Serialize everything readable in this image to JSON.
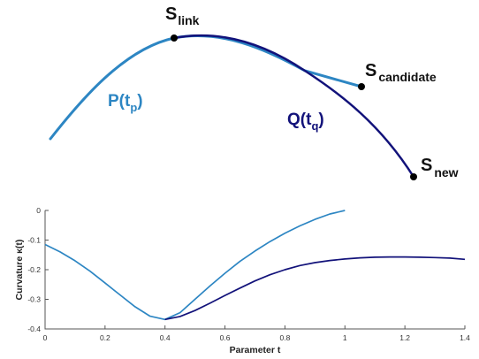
{
  "colors": {
    "p_curve": "#2d86c3",
    "q_curve": "#12127a",
    "axis": "#555555"
  },
  "top_diagram": {
    "points": [
      {
        "key": "link",
        "letter": "S",
        "subscript": "link"
      },
      {
        "key": "candidate",
        "letter": "S",
        "subscript": "candidate"
      },
      {
        "key": "new",
        "letter": "S",
        "subscript": "new"
      }
    ],
    "curve_labels": [
      {
        "key": "p",
        "letter": "P(t",
        "subscript": "p",
        "close": ")"
      },
      {
        "key": "q",
        "letter": "Q(t",
        "subscript": "q",
        "close": ")"
      }
    ]
  },
  "chart_data": {
    "type": "line",
    "xlabel": "Parameter t",
    "ylabel": "Curvature κ(t)",
    "xlim": [
      0,
      1.4
    ],
    "ylim": [
      -0.4,
      0
    ],
    "xticks": [
      0,
      0.2,
      0.4,
      0.6,
      0.8,
      1,
      1.2,
      1.4
    ],
    "xtick_labels": [
      "0",
      "0.2",
      "0.4",
      "0.6",
      "0.8",
      "1",
      "1.2",
      "1.4"
    ],
    "yticks": [
      0,
      -0.1,
      -0.2,
      -0.3,
      -0.4
    ],
    "ytick_labels": [
      "0",
      "-0.1",
      "-0.2",
      "-0.3",
      "-0.4"
    ],
    "grid": false,
    "series": [
      {
        "color": "#2d86c3",
        "x": [
          0,
          0.05,
          0.1,
          0.15,
          0.2,
          0.25,
          0.3,
          0.35,
          0.4,
          0.45,
          0.5,
          0.55,
          0.6,
          0.65,
          0.7,
          0.75,
          0.8,
          0.85,
          0.9,
          0.95,
          1.0
        ],
        "y": [
          -0.115,
          -0.14,
          -0.17,
          -0.205,
          -0.245,
          -0.285,
          -0.325,
          -0.357,
          -0.368,
          -0.345,
          -0.3,
          -0.255,
          -0.212,
          -0.172,
          -0.137,
          -0.105,
          -0.077,
          -0.052,
          -0.03,
          -0.012,
          0.0
        ]
      },
      {
        "color": "#12127a",
        "x": [
          0.4,
          0.45,
          0.5,
          0.55,
          0.6,
          0.65,
          0.7,
          0.75,
          0.8,
          0.85,
          0.9,
          0.95,
          1.0,
          1.05,
          1.1,
          1.15,
          1.2,
          1.25,
          1.3,
          1.35,
          1.4
        ],
        "y": [
          -0.368,
          -0.358,
          -0.338,
          -0.313,
          -0.287,
          -0.262,
          -0.238,
          -0.217,
          -0.2,
          -0.186,
          -0.176,
          -0.169,
          -0.164,
          -0.16,
          -0.158,
          -0.157,
          -0.157,
          -0.158,
          -0.159,
          -0.161,
          -0.165
        ]
      }
    ]
  }
}
